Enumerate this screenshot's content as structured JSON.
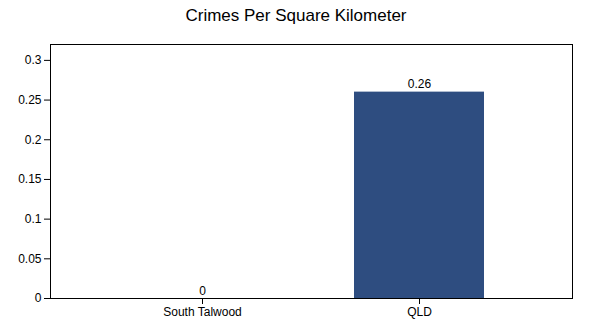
{
  "chart_data": {
    "type": "bar",
    "title": "Crimes Per Square Kilometer",
    "categories": [
      "South Talwood",
      "QLD"
    ],
    "values": [
      0,
      0.26
    ],
    "color": "#2e4d80",
    "ylim": [
      0,
      0.32
    ],
    "yticks": [
      0,
      0.05,
      0.1,
      0.15,
      0.2,
      0.25,
      0.3
    ],
    "grid": false,
    "data_labels": true
  }
}
